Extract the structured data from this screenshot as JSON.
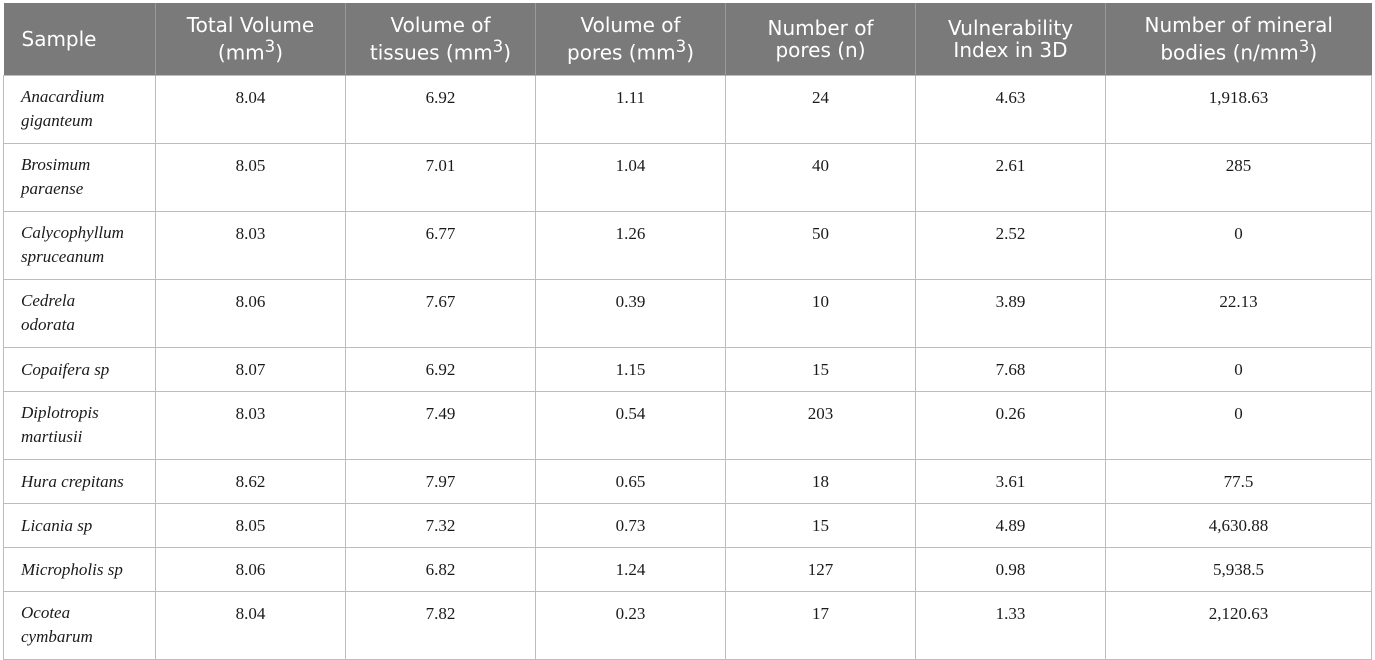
{
  "table": {
    "headers": [
      {
        "line1": "Sample",
        "line2": "",
        "sup": ""
      },
      {
        "line1": "Total Volume",
        "line2": "(mm",
        "sup": "3",
        "end": ")"
      },
      {
        "line1": "Volume of",
        "line2": "tissues (mm",
        "sup": "3",
        "end": ")"
      },
      {
        "line1": "Volume of",
        "line2": "pores (mm",
        "sup": "3",
        "end": ")"
      },
      {
        "line1": "Number of",
        "line2": "pores (n)",
        "sup": ""
      },
      {
        "line1": "Vulnerability",
        "line2": "Index in 3D",
        "sup": ""
      },
      {
        "line1": "Number of mineral",
        "line2": "bodies (n/mm",
        "sup": "3",
        "end": ")"
      }
    ],
    "rows": [
      {
        "name1": "Anacardium",
        "name2": "giganteum",
        "total": "8.04",
        "tissues": "6.92",
        "pores_vol": "1.11",
        "pores_n": "24",
        "vi": "4.63",
        "mineral": "1,918.63"
      },
      {
        "name1": "Brosimum",
        "name2": "paraense",
        "total": "8.05",
        "tissues": "7.01",
        "pores_vol": "1.04",
        "pores_n": "40",
        "vi": "2.61",
        "mineral": "285"
      },
      {
        "name1": "Calycophyllum",
        "name2": "spruceanum",
        "total": "8.03",
        "tissues": "6.77",
        "pores_vol": "1.26",
        "pores_n": "50",
        "vi": "2.52",
        "mineral": "0"
      },
      {
        "name1": "Cedrela",
        "name2": "odorata",
        "total": "8.06",
        "tissues": "7.67",
        "pores_vol": "0.39",
        "pores_n": "10",
        "vi": "3.89",
        "mineral": "22.13"
      },
      {
        "name1": "Copaifera sp",
        "name2": "",
        "total": "8.07",
        "tissues": "6.92",
        "pores_vol": "1.15",
        "pores_n": "15",
        "vi": "7.68",
        "mineral": "0"
      },
      {
        "name1": "Diplotropis",
        "name2": "martiusii",
        "total": "8.03",
        "tissues": "7.49",
        "pores_vol": "0.54",
        "pores_n": "203",
        "vi": "0.26",
        "mineral": "0"
      },
      {
        "name1": "Hura crepitans",
        "name2": "",
        "total": "8.62",
        "tissues": "7.97",
        "pores_vol": "0.65",
        "pores_n": "18",
        "vi": "3.61",
        "mineral": "77.5"
      },
      {
        "name1": "Licania sp",
        "name2": "",
        "total": "8.05",
        "tissues": "7.32",
        "pores_vol": "0.73",
        "pores_n": "15",
        "vi": "4.89",
        "mineral": "4,630.88"
      },
      {
        "name1": "Micropholis sp",
        "name2": "",
        "total": "8.06",
        "tissues": "6.82",
        "pores_vol": "1.24",
        "pores_n": "127",
        "vi": "0.98",
        "mineral": "5,938.5"
      },
      {
        "name1": "Ocotea",
        "name2": "cymbarum",
        "total": "8.04",
        "tissues": "7.82",
        "pores_vol": "0.23",
        "pores_n": "17",
        "vi": "1.33",
        "mineral": "2,120.63"
      }
    ]
  }
}
